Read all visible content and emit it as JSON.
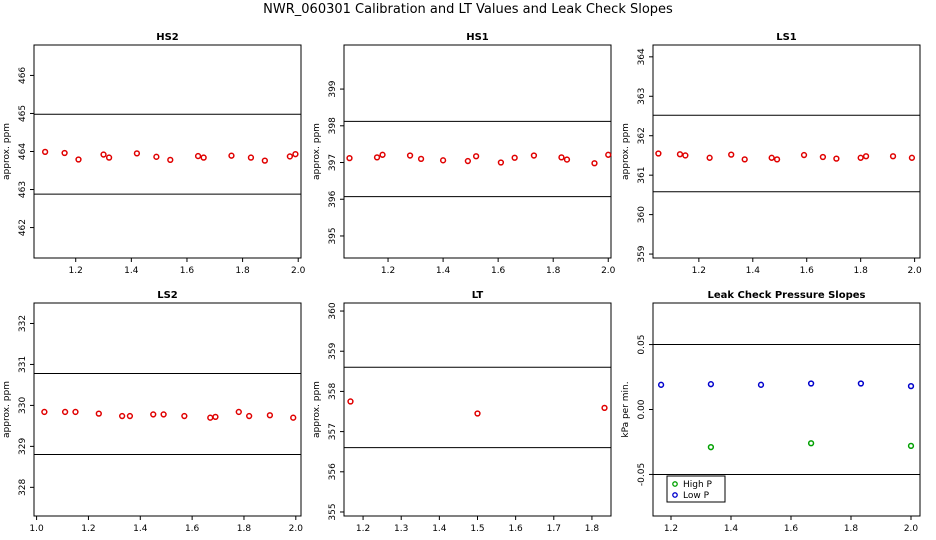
{
  "main_title": "NWR_060301  Calibration and LT Values and Leak Check Slopes",
  "colors": {
    "red": "#e00000",
    "blue": "#0000cc",
    "green": "#00a000",
    "line": "#000000"
  },
  "chart_data": [
    {
      "type": "scatter",
      "title": "HS2",
      "ylabel": "approx. ppm",
      "xlim": [
        1.05,
        2.01
      ],
      "ylim": [
        461.2,
        466.8
      ],
      "xticks": [
        1.2,
        1.4,
        1.6,
        1.8,
        2.0
      ],
      "xtick_labels": [
        "1.2",
        "1.4",
        "1.6",
        "1.8",
        "2.0"
      ],
      "yticks": [
        462,
        463,
        464,
        465,
        466
      ],
      "ytick_labels": [
        "462",
        "463",
        "464",
        "465",
        "466"
      ],
      "hlines": [
        464.98,
        462.88
      ],
      "series": [
        {
          "name": "HS2",
          "color": "red",
          "x": [
            1.09,
            1.16,
            1.21,
            1.3,
            1.32,
            1.42,
            1.49,
            1.54,
            1.64,
            1.66,
            1.76,
            1.83,
            1.88,
            1.97,
            1.99
          ],
          "y": [
            463.99,
            463.96,
            463.79,
            463.92,
            463.84,
            463.95,
            463.86,
            463.78,
            463.88,
            463.84,
            463.89,
            463.84,
            463.76,
            463.87,
            463.93
          ]
        }
      ]
    },
    {
      "type": "scatter",
      "title": "HS1",
      "ylabel": "approx. ppm",
      "xlim": [
        1.04,
        2.01
      ],
      "ylim": [
        394.4,
        400.2
      ],
      "xticks": [
        1.2,
        1.4,
        1.6,
        1.8,
        2.0
      ],
      "xtick_labels": [
        "1.2",
        "1.4",
        "1.6",
        "1.8",
        "2.0"
      ],
      "yticks": [
        395,
        396,
        397,
        398,
        399
      ],
      "ytick_labels": [
        "395",
        "396",
        "397",
        "398",
        "399"
      ],
      "hlines": [
        398.12,
        396.07
      ],
      "series": [
        {
          "name": "HS1",
          "color": "red",
          "x": [
            1.06,
            1.16,
            1.18,
            1.28,
            1.32,
            1.4,
            1.49,
            1.52,
            1.61,
            1.66,
            1.73,
            1.83,
            1.85,
            1.95,
            2.0
          ],
          "y": [
            397.12,
            397.14,
            397.21,
            397.19,
            397.1,
            397.06,
            397.04,
            397.17,
            397.0,
            397.13,
            397.19,
            397.14,
            397.08,
            396.98,
            397.21
          ]
        }
      ]
    },
    {
      "type": "scatter",
      "title": "LS1",
      "ylabel": "approx. ppm",
      "xlim": [
        1.03,
        2.02
      ],
      "ylim": [
        358.9,
        364.3
      ],
      "xticks": [
        1.2,
        1.4,
        1.6,
        1.8,
        2.0
      ],
      "xtick_labels": [
        "1.2",
        "1.4",
        "1.6",
        "1.8",
        "2.0"
      ],
      "yticks": [
        359,
        360,
        361,
        362,
        363,
        364
      ],
      "ytick_labels": [
        "359",
        "360",
        "361",
        "362",
        "363",
        "364"
      ],
      "hlines": [
        362.52,
        360.58
      ],
      "series": [
        {
          "name": "LS1",
          "color": "red",
          "x": [
            1.05,
            1.13,
            1.15,
            1.24,
            1.32,
            1.37,
            1.47,
            1.49,
            1.59,
            1.66,
            1.71,
            1.8,
            1.82,
            1.92,
            1.99
          ],
          "y": [
            361.55,
            361.53,
            361.5,
            361.44,
            361.52,
            361.4,
            361.44,
            361.4,
            361.51,
            361.46,
            361.42,
            361.44,
            361.48,
            361.48,
            361.44
          ]
        }
      ]
    },
    {
      "type": "scatter",
      "title": "LS2",
      "ylabel": "approx. ppm",
      "xlim": [
        0.99,
        2.02
      ],
      "ylim": [
        327.3,
        332.5
      ],
      "xticks": [
        1.0,
        1.2,
        1.4,
        1.6,
        1.8,
        2.0
      ],
      "xtick_labels": [
        "1.0",
        "1.2",
        "1.4",
        "1.6",
        "1.8",
        "2.0"
      ],
      "yticks": [
        328,
        329,
        330,
        331,
        332
      ],
      "ytick_labels": [
        "328",
        "329",
        "330",
        "331",
        "332"
      ],
      "hlines": [
        330.78,
        328.8
      ],
      "series": [
        {
          "name": "LS2",
          "color": "red",
          "x": [
            1.03,
            1.11,
            1.15,
            1.24,
            1.33,
            1.36,
            1.45,
            1.49,
            1.57,
            1.67,
            1.69,
            1.78,
            1.82,
            1.9,
            1.99
          ],
          "y": [
            329.84,
            329.84,
            329.84,
            329.8,
            329.74,
            329.74,
            329.78,
            329.78,
            329.74,
            329.7,
            329.72,
            329.84,
            329.74,
            329.76,
            329.7
          ]
        }
      ]
    },
    {
      "type": "scatter",
      "title": "LT",
      "ylabel": "approx. ppm",
      "xlim": [
        1.15,
        1.85
      ],
      "ylim": [
        354.9,
        360.2
      ],
      "xticks": [
        1.2,
        1.3,
        1.4,
        1.5,
        1.6,
        1.7,
        1.8
      ],
      "xtick_labels": [
        "1.2",
        "1.3",
        "1.4",
        "1.5",
        "1.6",
        "1.7",
        "1.8"
      ],
      "yticks": [
        355,
        356,
        357,
        358,
        359,
        360
      ],
      "ytick_labels": [
        "355",
        "356",
        "357",
        "358",
        "359",
        "360"
      ],
      "hlines": [
        358.6,
        356.6
      ],
      "series": [
        {
          "name": "LT",
          "color": "red",
          "x": [
            1.167,
            1.5,
            1.833
          ],
          "y": [
            357.75,
            357.45,
            357.59
          ]
        }
      ]
    },
    {
      "type": "scatter",
      "title": "Leak Check Pressure Slopes",
      "ylabel": "kPa per min.",
      "xlim": [
        1.14,
        2.03
      ],
      "ylim": [
        -0.082,
        0.082
      ],
      "xticks": [
        1.2,
        1.4,
        1.6,
        1.8,
        2.0
      ],
      "xtick_labels": [
        "1.2",
        "1.4",
        "1.6",
        "1.8",
        "2.0"
      ],
      "yticks": [
        -0.05,
        0.0,
        0.05
      ],
      "ytick_labels": [
        "-0.05",
        "0.00",
        "0.05"
      ],
      "hlines": [
        0.05,
        -0.05
      ],
      "legend": {
        "position": "bottom-left",
        "entries": [
          "High P",
          "Low P"
        ]
      },
      "series": [
        {
          "name": "High P",
          "color": "green",
          "x": [
            1.333,
            1.667,
            2.0
          ],
          "y": [
            -0.029,
            -0.026,
            -0.028
          ]
        },
        {
          "name": "Low P",
          "color": "blue",
          "x": [
            1.167,
            1.333,
            1.5,
            1.667,
            1.833,
            2.0
          ],
          "y": [
            0.019,
            0.0195,
            0.019,
            0.02,
            0.02,
            0.018
          ]
        }
      ]
    }
  ]
}
